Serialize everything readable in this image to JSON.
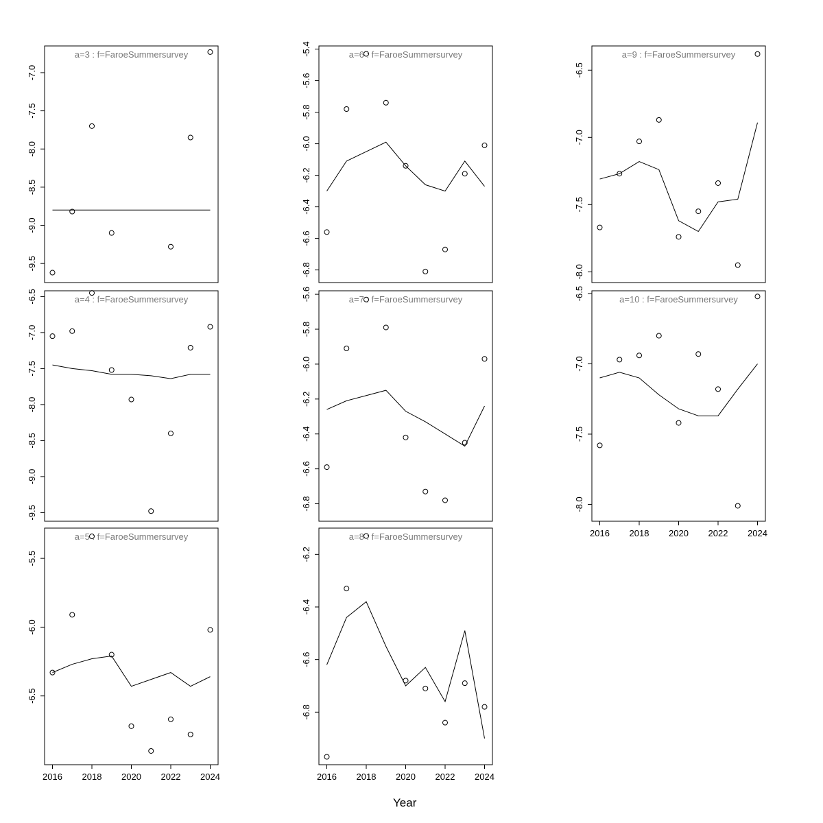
{
  "figure": {
    "xlabel": "Year",
    "background": "#ffffff",
    "axis_color": "#000000",
    "title_color": "#7a7a7a"
  },
  "chart_data": [
    {
      "type": "scatter",
      "id": "a3",
      "title": "a=3  :  f=FaroeSummersurvey",
      "grid": {
        "row": 0,
        "col": 0
      },
      "show_x_axis": false,
      "xlim": [
        2015.6,
        2024.4
      ],
      "xticks": [
        2016,
        2018,
        2020,
        2022,
        2024
      ],
      "ylim": [
        -9.75,
        -6.65
      ],
      "yticks": [
        -7.0,
        -7.5,
        -8.0,
        -8.5,
        -9.0,
        -9.5
      ],
      "points": {
        "x": [
          2016,
          2017,
          2018,
          2019,
          2022,
          2023,
          2024
        ],
        "y": [
          -9.62,
          -8.82,
          -7.7,
          -9.1,
          -9.28,
          -7.85,
          -6.73
        ]
      },
      "line": {
        "x": [
          2016,
          2024
        ],
        "y": [
          -8.8,
          -8.8
        ]
      }
    },
    {
      "type": "scatter",
      "id": "a6",
      "title": "a=6  :  f=FaroeSummersurvey",
      "grid": {
        "row": 0,
        "col": 1
      },
      "show_x_axis": false,
      "xlim": [
        2015.6,
        2024.4
      ],
      "xticks": [
        2016,
        2018,
        2020,
        2022,
        2024
      ],
      "ylim": [
        -6.88,
        -5.38
      ],
      "yticks": [
        -5.4,
        -5.6,
        -5.8,
        -6.0,
        -6.2,
        -6.4,
        -6.6,
        -6.8
      ],
      "points": {
        "x": [
          2016,
          2017,
          2018,
          2019,
          2020,
          2021,
          2022,
          2023,
          2024
        ],
        "y": [
          -6.56,
          -5.78,
          -5.43,
          -5.74,
          -6.14,
          -6.81,
          -6.67,
          -6.19,
          -6.01
        ]
      },
      "line": {
        "x": [
          2016,
          2017,
          2018,
          2019,
          2020,
          2021,
          2022,
          2023,
          2024
        ],
        "y": [
          -6.3,
          -6.11,
          -6.05,
          -5.99,
          -6.14,
          -6.26,
          -6.3,
          -6.11,
          -6.27
        ]
      }
    },
    {
      "type": "scatter",
      "id": "a9",
      "title": "a=9  :  f=FaroeSummersurvey",
      "grid": {
        "row": 0,
        "col": 2
      },
      "show_x_axis": false,
      "xlim": [
        2015.6,
        2024.4
      ],
      "xticks": [
        2016,
        2018,
        2020,
        2022,
        2024
      ],
      "ylim": [
        -8.08,
        -6.32
      ],
      "yticks": [
        -6.5,
        -7.0,
        -7.5,
        -8.0
      ],
      "points": {
        "x": [
          2016,
          2017,
          2018,
          2019,
          2020,
          2021,
          2022,
          2023,
          2024
        ],
        "y": [
          -7.67,
          -7.27,
          -7.03,
          -6.87,
          -7.74,
          -7.55,
          -7.34,
          -7.95,
          -6.38
        ]
      },
      "line": {
        "x": [
          2016,
          2017,
          2018,
          2019,
          2020,
          2021,
          2022,
          2023,
          2024
        ],
        "y": [
          -7.31,
          -7.27,
          -7.18,
          -7.24,
          -7.62,
          -7.7,
          -7.48,
          -7.46,
          -6.89
        ]
      }
    },
    {
      "type": "scatter",
      "id": "a4",
      "title": "a=4  :  f=FaroeSummersurvey",
      "grid": {
        "row": 1,
        "col": 0
      },
      "show_x_axis": false,
      "xlim": [
        2015.6,
        2024.4
      ],
      "xticks": [
        2016,
        2018,
        2020,
        2022,
        2024
      ],
      "ylim": [
        -9.62,
        -6.42
      ],
      "yticks": [
        -6.5,
        -7.0,
        -7.5,
        -8.0,
        -8.5,
        -9.0,
        -9.5
      ],
      "points": {
        "x": [
          2016,
          2017,
          2018,
          2019,
          2020,
          2021,
          2022,
          2023,
          2024
        ],
        "y": [
          -7.05,
          -6.98,
          -6.45,
          -7.52,
          -7.93,
          -9.48,
          -8.4,
          -7.21,
          -6.92
        ]
      },
      "line": {
        "x": [
          2016,
          2017,
          2018,
          2019,
          2020,
          2021,
          2022,
          2023,
          2024
        ],
        "y": [
          -7.45,
          -7.5,
          -7.53,
          -7.58,
          -7.58,
          -7.6,
          -7.64,
          -7.58,
          -7.58
        ]
      }
    },
    {
      "type": "scatter",
      "id": "a7",
      "title": "a=7  :  f=FaroeSummersurvey",
      "grid": {
        "row": 1,
        "col": 1
      },
      "show_x_axis": false,
      "xlim": [
        2015.6,
        2024.4
      ],
      "xticks": [
        2016,
        2018,
        2020,
        2022,
        2024
      ],
      "ylim": [
        -6.9,
        -5.58
      ],
      "yticks": [
        -5.6,
        -5.8,
        -6.0,
        -6.2,
        -6.4,
        -6.6,
        -6.8
      ],
      "points": {
        "x": [
          2016,
          2017,
          2018,
          2019,
          2020,
          2021,
          2022,
          2023,
          2024
        ],
        "y": [
          -6.59,
          -5.91,
          -5.63,
          -5.79,
          -6.42,
          -6.73,
          -6.78,
          -6.45,
          -5.97
        ]
      },
      "line": {
        "x": [
          2016,
          2017,
          2018,
          2019,
          2020,
          2021,
          2022,
          2023,
          2024
        ],
        "y": [
          -6.26,
          -6.21,
          -6.18,
          -6.15,
          -6.27,
          -6.33,
          -6.4,
          -6.47,
          -6.24
        ]
      }
    },
    {
      "type": "scatter",
      "id": "a10",
      "title": "a=10  :  f=FaroeSummersurvey",
      "grid": {
        "row": 1,
        "col": 2
      },
      "show_x_axis": true,
      "xlim": [
        2015.6,
        2024.4
      ],
      "xticks": [
        2016,
        2018,
        2020,
        2022,
        2024
      ],
      "ylim": [
        -8.12,
        -6.48
      ],
      "yticks": [
        -6.5,
        -7.0,
        -7.5,
        -8.0
      ],
      "points": {
        "x": [
          2016,
          2017,
          2018,
          2019,
          2020,
          2021,
          2022,
          2023,
          2024
        ],
        "y": [
          -7.58,
          -6.97,
          -6.94,
          -6.8,
          -7.42,
          -6.93,
          -7.18,
          -8.01,
          -6.52
        ]
      },
      "line": {
        "x": [
          2016,
          2017,
          2018,
          2019,
          2020,
          2021,
          2022,
          2023,
          2024
        ],
        "y": [
          -7.1,
          -7.06,
          -7.1,
          -7.22,
          -7.32,
          -7.37,
          -7.37,
          -7.18,
          -7.0
        ]
      }
    },
    {
      "type": "scatter",
      "id": "a5",
      "title": "a=5  :  f=FaroeSummersurvey",
      "grid": {
        "row": 2,
        "col": 0
      },
      "show_x_axis": true,
      "xlim": [
        2015.6,
        2024.4
      ],
      "xticks": [
        2016,
        2018,
        2020,
        2022,
        2024
      ],
      "ylim": [
        -7.0,
        -5.28
      ],
      "yticks": [
        -5.5,
        -6.0,
        -6.5
      ],
      "points": {
        "x": [
          2016,
          2017,
          2018,
          2019,
          2020,
          2021,
          2022,
          2023,
          2024
        ],
        "y": [
          -6.33,
          -5.91,
          -5.34,
          -6.2,
          -6.72,
          -6.9,
          -6.67,
          -6.78,
          -6.02
        ]
      },
      "line": {
        "x": [
          2016,
          2017,
          2018,
          2019,
          2020,
          2021,
          2022,
          2023,
          2024
        ],
        "y": [
          -6.33,
          -6.27,
          -6.23,
          -6.21,
          -6.43,
          -6.38,
          -6.33,
          -6.43,
          -6.36
        ]
      }
    },
    {
      "type": "scatter",
      "id": "a8",
      "title": "a=8  :  f=FaroeSummersurvey",
      "grid": {
        "row": 2,
        "col": 1
      },
      "show_x_axis": true,
      "xlim": [
        2015.6,
        2024.4
      ],
      "xticks": [
        2016,
        2018,
        2020,
        2022,
        2024
      ],
      "ylim": [
        -7.0,
        -6.1
      ],
      "yticks": [
        -6.2,
        -6.4,
        -6.6,
        -6.8
      ],
      "points": {
        "x": [
          2016,
          2017,
          2018,
          2020,
          2021,
          2022,
          2023,
          2024
        ],
        "y": [
          -6.97,
          -6.33,
          -6.13,
          -6.68,
          -6.71,
          -6.84,
          -6.69,
          -6.78
        ]
      },
      "line": {
        "x": [
          2016,
          2017,
          2018,
          2019,
          2020,
          2021,
          2022,
          2023,
          2024
        ],
        "y": [
          -6.62,
          -6.44,
          -6.38,
          -6.55,
          -6.7,
          -6.63,
          -6.76,
          -6.49,
          -6.9
        ]
      }
    }
  ]
}
